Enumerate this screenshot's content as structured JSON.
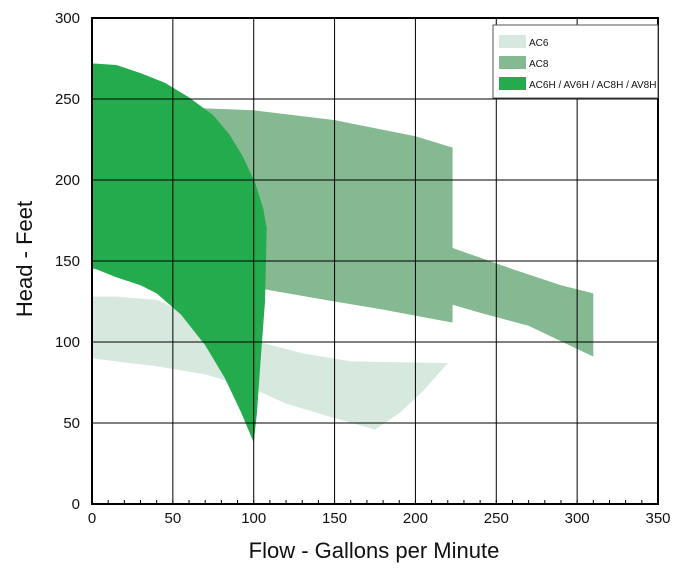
{
  "chart_data": {
    "type": "area",
    "title": "",
    "xlabel": "Flow - Gallons per Minute",
    "ylabel": "Head - Feet",
    "xlim": [
      0,
      350
    ],
    "ylim": [
      0,
      300
    ],
    "x_ticks": [
      0,
      50,
      100,
      150,
      200,
      250,
      300,
      350
    ],
    "y_ticks": [
      0,
      50,
      100,
      150,
      200,
      250,
      300
    ],
    "grid": true,
    "legend_position": "top-right",
    "series": [
      {
        "name": "AC6",
        "color": "#d7e9de",
        "points": [
          [
            0,
            128
          ],
          [
            15,
            128
          ],
          [
            40,
            126
          ],
          [
            65,
            115
          ],
          [
            100,
            101
          ],
          [
            130,
            93
          ],
          [
            160,
            88
          ],
          [
            220,
            87
          ],
          [
            205,
            70
          ],
          [
            190,
            56
          ],
          [
            175,
            46
          ],
          [
            150,
            53
          ],
          [
            120,
            62
          ],
          [
            100,
            71
          ],
          [
            70,
            80
          ],
          [
            40,
            85
          ],
          [
            15,
            88
          ],
          [
            0,
            90
          ]
        ]
      },
      {
        "name": "AC8",
        "color": "#84b991",
        "points": [
          [
            0,
            245
          ],
          [
            50,
            245
          ],
          [
            100,
            243
          ],
          [
            150,
            237
          ],
          [
            200,
            227
          ],
          [
            223,
            220
          ],
          [
            223,
            158
          ],
          [
            260,
            145
          ],
          [
            290,
            135
          ],
          [
            310,
            130
          ],
          [
            310,
            91
          ],
          [
            270,
            110
          ],
          [
            240,
            118
          ],
          [
            223,
            123
          ],
          [
            223,
            112
          ],
          [
            180,
            120
          ],
          [
            150,
            125
          ],
          [
            110,
            132
          ],
          [
            80,
            138
          ],
          [
            50,
            143
          ],
          [
            20,
            145
          ],
          [
            0,
            145
          ]
        ]
      },
      {
        "name": "AC6H / AV6H / AC8H / AV8H",
        "color": "#24ab4e",
        "points": [
          [
            0,
            272
          ],
          [
            15,
            271
          ],
          [
            30,
            266
          ],
          [
            45,
            260
          ],
          [
            60,
            251
          ],
          [
            75,
            240
          ],
          [
            85,
            228
          ],
          [
            93,
            215
          ],
          [
            101,
            198
          ],
          [
            106,
            182
          ],
          [
            108,
            170
          ],
          [
            107,
            125
          ],
          [
            104,
            85
          ],
          [
            102,
            56
          ],
          [
            100,
            38
          ],
          [
            92,
            57
          ],
          [
            82,
            78
          ],
          [
            70,
            98
          ],
          [
            55,
            117
          ],
          [
            40,
            130
          ],
          [
            30,
            135
          ],
          [
            15,
            140
          ],
          [
            0,
            146
          ]
        ]
      }
    ]
  }
}
